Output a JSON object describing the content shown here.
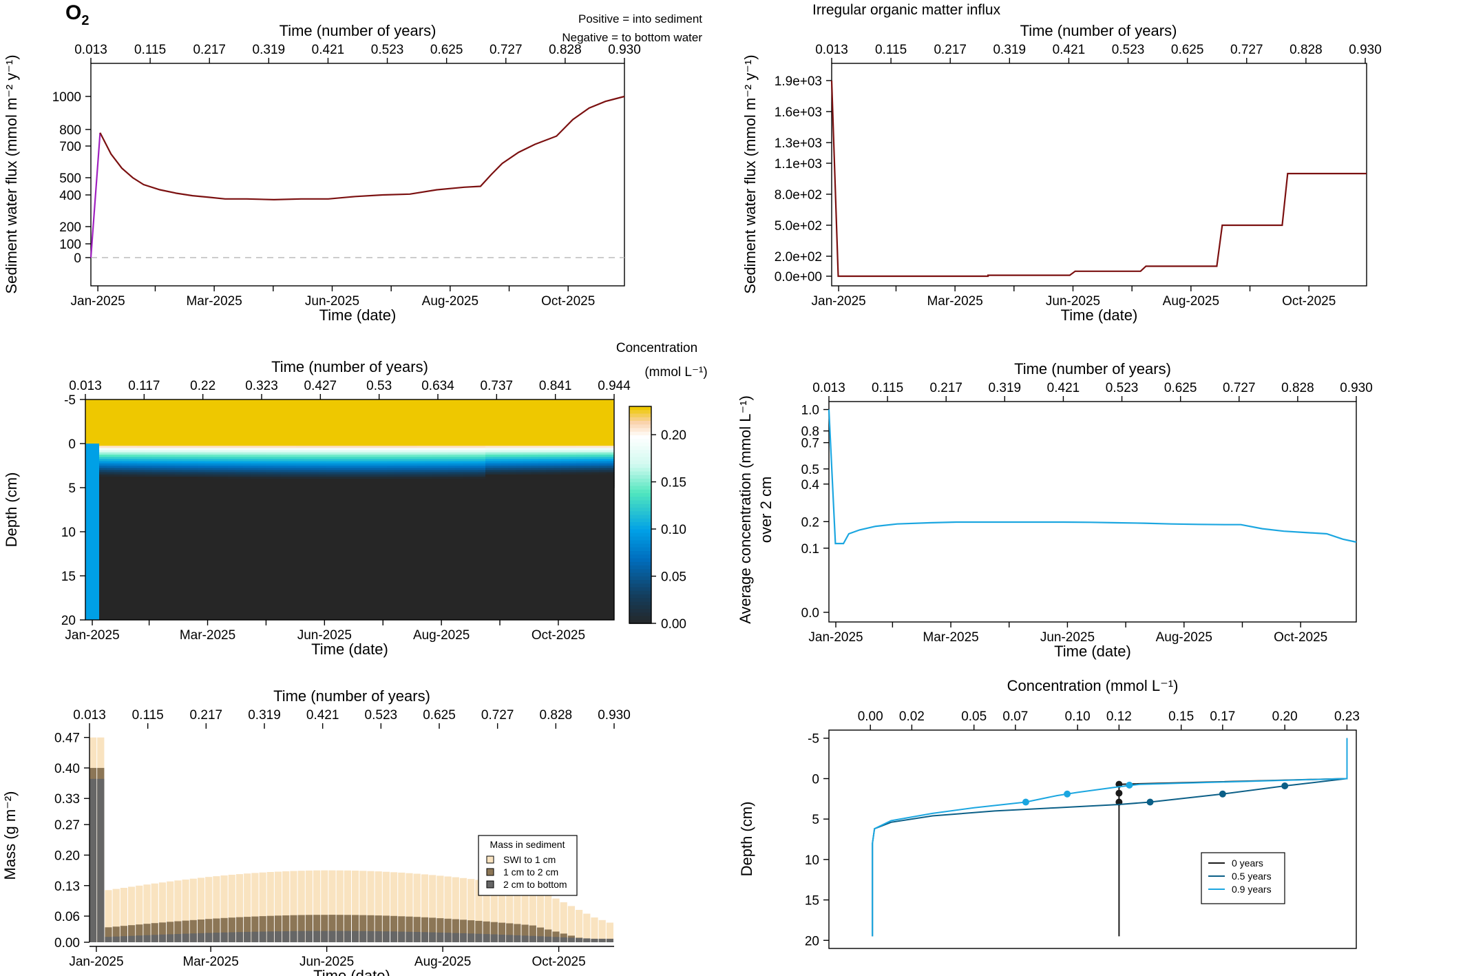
{
  "header": {
    "species": "O",
    "species_sub": "2",
    "note_positive": "Positive = into sediment",
    "note_negative": "Negative = to bottom water",
    "influx_title": "Irregular organic matter influx",
    "positive_color": "#8b1a1a",
    "negative_color": "#1a1a8b"
  },
  "chart_data": [
    {
      "id": "o2-flux",
      "type": "line",
      "title": "",
      "xlabel": "Time (date)",
      "xlabel_top": "Time (number of years)",
      "ylabel": "Sediment water flux (mmol m⁻² y⁻¹)",
      "x_ticks": [
        "Jan-2025",
        "Mar-2025",
        "Jun-2025",
        "Aug-2025",
        "Oct-2025"
      ],
      "x_top_ticks": [
        "0.013",
        "0.115",
        "0.217",
        "0.319",
        "0.421",
        "0.523",
        "0.625",
        "0.727",
        "0.828",
        "0.930"
      ],
      "y_ticks": [
        "0",
        "100",
        "200",
        "400",
        "500",
        "700",
        "800",
        "1000"
      ],
      "y_scale": "sign-log",
      "xlim": [
        0.013,
        0.995
      ],
      "ylim": [
        -30,
        1150
      ],
      "zero_line": "dashed",
      "series": [
        {
          "color": "#7b1010",
          "x": [
            0.013,
            0.03,
            0.05,
            0.07,
            0.09,
            0.11,
            0.14,
            0.17,
            0.2,
            0.23,
            0.26,
            0.3,
            0.35,
            0.4,
            0.45,
            0.5,
            0.55,
            0.6,
            0.65,
            0.7,
            0.73,
            0.75,
            0.77,
            0.8,
            0.83,
            0.87,
            0.9,
            0.93,
            0.96,
            0.995
          ],
          "y": [
            0,
            780,
            650,
            560,
            500,
            460,
            430,
            410,
            395,
            385,
            375,
            375,
            370,
            375,
            375,
            390,
            400,
            405,
            430,
            445,
            450,
            520,
            590,
            660,
            710,
            760,
            860,
            930,
            970,
            1000
          ]
        }
      ]
    },
    {
      "id": "om-influx",
      "type": "line",
      "title": "Irregular organic matter influx",
      "xlabel": "Time (date)",
      "xlabel_top": "Time (number of years)",
      "ylabel": "Sediment water flux (mmol m⁻² y⁻¹)",
      "x_ticks": [
        "Jan-2025",
        "Mar-2025",
        "Jun-2025",
        "Aug-2025",
        "Oct-2025"
      ],
      "x_top_ticks": [
        "0.013",
        "0.115",
        "0.217",
        "0.319",
        "0.421",
        "0.523",
        "0.625",
        "0.727",
        "0.828",
        "0.930"
      ],
      "y_ticks": [
        "0.0e+00",
        "2.0e+02",
        "5.0e+02",
        "8.0e+02",
        "1.1e+03",
        "1.3e+03",
        "1.6e+03",
        "1.9e+03"
      ],
      "xlim": [
        0.013,
        0.995
      ],
      "ylim": [
        -100,
        2000
      ],
      "series": [
        {
          "color": "#7b1010",
          "x": [
            0.013,
            0.025,
            0.3,
            0.3,
            0.45,
            0.46,
            0.58,
            0.59,
            0.72,
            0.73,
            0.84,
            0.85,
            0.995
          ],
          "y": [
            1900,
            0,
            0,
            10,
            10,
            50,
            50,
            100,
            100,
            500,
            500,
            1000,
            1000
          ]
        }
      ]
    },
    {
      "id": "o2-heatmap",
      "type": "heatmap",
      "xlabel": "Time (date)",
      "xlabel_top": "Time (number of years)",
      "ylabel": "Depth (cm)",
      "x_ticks": [
        "Jan-2025",
        "Mar-2025",
        "Jun-2025",
        "Aug-2025",
        "Oct-2025"
      ],
      "x_top_ticks": [
        "0.013",
        "0.117",
        "0.22",
        "0.323",
        "0.427",
        "0.53",
        "0.634",
        "0.737",
        "0.841",
        "0.944"
      ],
      "y_ticks": [
        "-5",
        "0",
        "5",
        "10",
        "15",
        "20"
      ],
      "colorbar_title": "Concentration",
      "colorbar_unit": "(mmol L⁻¹)",
      "colorbar_ticks": [
        "0.00",
        "0.05",
        "0.10",
        "0.15",
        "0.20"
      ],
      "zlim": [
        0,
        0.23
      ],
      "water_value": 0.23,
      "initial_value": 0.1
    },
    {
      "id": "avg-conc",
      "type": "line",
      "xlabel": "Time (date)",
      "xlabel_top": "Time (number of years)",
      "ylabel": "Average concentration (mmol L⁻¹)",
      "ylabel2": "over 2 cm",
      "x_ticks": [
        "Jan-2025",
        "Mar-2025",
        "Jun-2025",
        "Aug-2025",
        "Oct-2025"
      ],
      "x_top_ticks": [
        "0.013",
        "0.115",
        "0.217",
        "0.319",
        "0.421",
        "0.523",
        "0.625",
        "0.727",
        "0.828",
        "0.930"
      ],
      "y_ticks": [
        "0.0",
        "0.1",
        "0.2",
        "0.4",
        "0.5",
        "0.7",
        "0.8",
        "1.0"
      ],
      "y_scale": "sqrt",
      "xlim": [
        0.013,
        0.995
      ],
      "ylim": [
        -0.005,
        1.08
      ],
      "series": [
        {
          "color": "#1ba6e0",
          "x": [
            0.013,
            0.025,
            0.04,
            0.05,
            0.07,
            0.1,
            0.14,
            0.2,
            0.25,
            0.3,
            0.35,
            0.4,
            0.45,
            0.5,
            0.55,
            0.6,
            0.65,
            0.7,
            0.75,
            0.78,
            0.82,
            0.86,
            0.9,
            0.94,
            0.97,
            0.995
          ],
          "y": [
            1.0,
            0.115,
            0.115,
            0.15,
            0.165,
            0.18,
            0.19,
            0.195,
            0.198,
            0.198,
            0.198,
            0.198,
            0.198,
            0.197,
            0.195,
            0.193,
            0.19,
            0.188,
            0.187,
            0.187,
            0.17,
            0.16,
            0.155,
            0.15,
            0.13,
            0.12
          ]
        }
      ]
    },
    {
      "id": "mass-sediment",
      "type": "bar",
      "xlabel": "Time (date)",
      "xlabel_top": "Time (number of years)",
      "ylabel": "Mass (g m⁻²)",
      "x_ticks": [
        "Jan-2025",
        "Mar-2025",
        "Jun-2025",
        "Aug-2025",
        "Oct-2025"
      ],
      "x_top_ticks": [
        "0.013",
        "0.115",
        "0.217",
        "0.319",
        "0.421",
        "0.523",
        "0.625",
        "0.727",
        "0.828",
        "0.930"
      ],
      "y_ticks": [
        "0.00",
        "0.06",
        "0.13",
        "0.20",
        "0.27",
        "0.33",
        "0.40",
        "0.47"
      ],
      "ylim": [
        0,
        0.49
      ],
      "legend_title": "Mass in sediment",
      "legend_position": "right",
      "series": [
        {
          "name": "SWI to 1 cm",
          "color": "#f9e3c0"
        },
        {
          "name": "1 cm to 2 cm",
          "color": "#8c7656"
        },
        {
          "name": "2 cm to bottom",
          "color": "#666666"
        }
      ]
    },
    {
      "id": "depth-profile",
      "type": "line",
      "xlabel": "Concentration (mmol L⁻¹)",
      "ylabel": "Depth (cm)",
      "x_top_ticks": [
        "0.00",
        "0.02",
        "0.05",
        "0.07",
        "0.10",
        "0.12",
        "0.15",
        "0.17",
        "0.20",
        "0.23"
      ],
      "y_ticks": [
        "-5",
        "0",
        "5",
        "10",
        "15",
        "20"
      ],
      "xlim": [
        -0.02,
        0.2345
      ],
      "ylim": [
        -6,
        21
      ],
      "legend_position": "bottom-right",
      "series": [
        {
          "name": "0 years",
          "color": "#1a1a1a",
          "x": [
            0.23,
            0.23,
            0.12,
            0.12,
            0.12
          ],
          "y": [
            -5,
            0,
            0.7,
            5,
            19.5
          ],
          "markers_x": [
            0.12,
            0.12,
            0.12
          ],
          "markers_y": [
            0.7,
            1.8,
            2.9
          ]
        },
        {
          "name": "0.5 years",
          "color": "#0b5f87",
          "x": [
            0.23,
            0.23,
            0.2,
            0.17,
            0.135,
            0.12,
            0.09,
            0.06,
            0.03,
            0.01,
            0.002,
            0.001,
            0.001
          ],
          "y": [
            -5,
            0,
            0.9,
            1.9,
            2.9,
            3.2,
            3.6,
            4.0,
            4.6,
            5.4,
            6.2,
            8,
            19.5
          ],
          "markers_x": [
            0.2,
            0.17,
            0.135
          ],
          "markers_y": [
            0.9,
            1.9,
            2.9
          ]
        },
        {
          "name": "0.9 years",
          "color": "#1ba6e0",
          "x": [
            0.23,
            0.23,
            0.13,
            0.12,
            0.1,
            0.09,
            0.075,
            0.05,
            0.03,
            0.01,
            0.002,
            0.001,
            0.001
          ],
          "y": [
            -5,
            0,
            0.7,
            1.0,
            1.7,
            2.1,
            2.9,
            3.6,
            4.3,
            5.2,
            6.2,
            8,
            19.5
          ],
          "markers_x": [
            0.125,
            0.095,
            0.075
          ],
          "markers_y": [
            0.8,
            1.9,
            2.9
          ]
        }
      ]
    }
  ]
}
